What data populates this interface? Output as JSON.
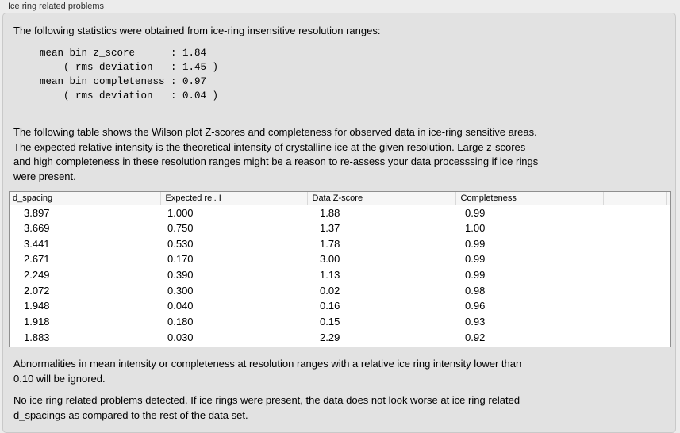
{
  "colors": {
    "page_bg": "#ececec",
    "panel_bg": "#e2e2e2",
    "panel_border": "#c9c9c9",
    "table_border": "#8f8f8f",
    "header_bg": "#f6f6f6",
    "header_separator": "#d9d9d9",
    "header_bottom": "#b0b0b0",
    "title_text": "#2e2e2e",
    "text": "#000000"
  },
  "section": {
    "title": "Ice ring related problems"
  },
  "intro": {
    "text": "The following statistics were obtained from ice-ring insensitive resolution ranges:",
    "stats_block": "mean bin z_score      : 1.84\n    ( rms deviation   : 1.45 )\nmean bin completeness : 0.97\n    ( rms deviation   : 0.04 )"
  },
  "stats": {
    "mean_bin_z_score": "1.84",
    "z_score_rms_deviation": "1.45",
    "mean_bin_completeness": "0.97",
    "completeness_rms_deviation": "0.04"
  },
  "description": {
    "text": "The following table shows the Wilson plot Z-scores and completeness for observed data in ice-ring sensitive areas.\nThe expected relative intensity is the theoretical intensity of crystalline ice at the given resolution. Large z-scores\nand high completeness in these resolution ranges might be a reason to re-assess your data processsing if ice rings\nwere present."
  },
  "table": {
    "columns": [
      "d_spacing",
      "Expected rel. I",
      "Data Z-score",
      "Completeness"
    ],
    "rows": [
      [
        "3.897",
        "1.000",
        "1.88",
        "0.99"
      ],
      [
        "3.669",
        "0.750",
        "1.37",
        "1.00"
      ],
      [
        "3.441",
        "0.530",
        "1.78",
        "0.99"
      ],
      [
        "2.671",
        "0.170",
        "3.00",
        "0.99"
      ],
      [
        "2.249",
        "0.390",
        "1.13",
        "0.99"
      ],
      [
        "2.072",
        "0.300",
        "0.02",
        "0.98"
      ],
      [
        "1.948",
        "0.040",
        "0.16",
        "0.96"
      ],
      [
        "1.918",
        "0.180",
        "0.15",
        "0.93"
      ],
      [
        "1.883",
        "0.030",
        "2.29",
        "0.92"
      ]
    ]
  },
  "notes": {
    "ignore_note": "Abnormalities in mean intensity or completeness at resolution ranges with a relative ice ring intensity lower than\n0.10 will be ignored.",
    "conclusion": "No ice ring related problems detected. If ice rings were present, the data does not look worse at ice ring related\nd_spacings as compared to the rest of the data set."
  }
}
